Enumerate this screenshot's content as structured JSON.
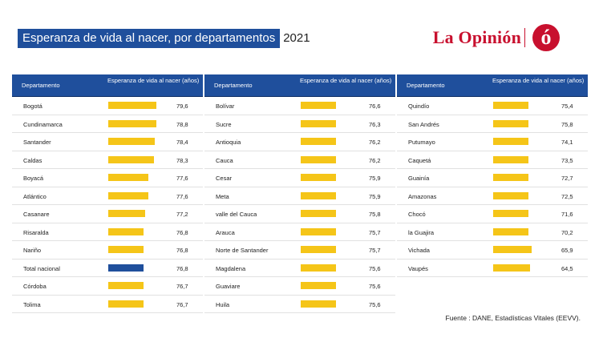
{
  "title": "Esperanza de vida al nacer, por departamentos",
  "year": "2021",
  "logo": {
    "name": "La Opinión",
    "mark": "ó"
  },
  "colors": {
    "accent": "#1f4f9c",
    "bar": "#f5c518",
    "brand": "#c8102e"
  },
  "source": "Fuente : DANE, Estadísticas Vitales (EEVV).",
  "chart_data": {
    "type": "table",
    "headers": {
      "department": "Departamento",
      "life_expectancy": "Esperanza de vida al nacer (años)"
    },
    "columns": [
      {
        "rows": [
          {
            "name": "Bogotá",
            "value": "79,6"
          },
          {
            "name": "Cundinamarca",
            "value": "78,8"
          },
          {
            "name": "Santander",
            "value": "78,4"
          },
          {
            "name": "Caldas",
            "value": "78,3"
          },
          {
            "name": "Boyacá",
            "value": "77,6"
          },
          {
            "name": "Atlántico",
            "value": "77,6"
          },
          {
            "name": "Casanare",
            "value": "77,2"
          },
          {
            "name": "Risaralda",
            "value": "76,8"
          },
          {
            "name": "Nariño",
            "value": "76,8"
          },
          {
            "name": "Total nacional",
            "value": "76,8",
            "highlight": true
          },
          {
            "name": "Córdoba",
            "value": "76,7"
          },
          {
            "name": "Tolima",
            "value": "76,7"
          }
        ]
      },
      {
        "rows": [
          {
            "name": "Bolívar",
            "value": "76,6"
          },
          {
            "name": "Sucre",
            "value": "76,3"
          },
          {
            "name": "Antioquia",
            "value": "76,2"
          },
          {
            "name": "Cauca",
            "value": "76,2"
          },
          {
            "name": "Cesar",
            "value": "75,9"
          },
          {
            "name": "Meta",
            "value": "75,9"
          },
          {
            "name": "valle del Cauca",
            "value": "75,8"
          },
          {
            "name": "Arauca",
            "value": "75,7"
          },
          {
            "name": "Norte de Santander",
            "value": "75,7"
          },
          {
            "name": "Magdalena",
            "value": "75,6"
          },
          {
            "name": "Guaviare",
            "value": "75,6"
          },
          {
            "name": "Huila",
            "value": "75,6"
          }
        ]
      },
      {
        "rows": [
          {
            "name": "Quindío",
            "value": "75,4"
          },
          {
            "name": "San Andrés",
            "value": "75,8"
          },
          {
            "name": "Putumayo",
            "value": "74,1"
          },
          {
            "name": "Caquetá",
            "value": "73,5"
          },
          {
            "name": "Guainía",
            "value": "72,7"
          },
          {
            "name": "Amazonas",
            "value": "72,5"
          },
          {
            "name": "Chocó",
            "value": "71,6"
          },
          {
            "name": "la Guajira",
            "value": "70,2"
          },
          {
            "name": "Vichada",
            "value": "65,9"
          },
          {
            "name": "Vaupés",
            "value": "64,5"
          }
        ]
      }
    ]
  }
}
